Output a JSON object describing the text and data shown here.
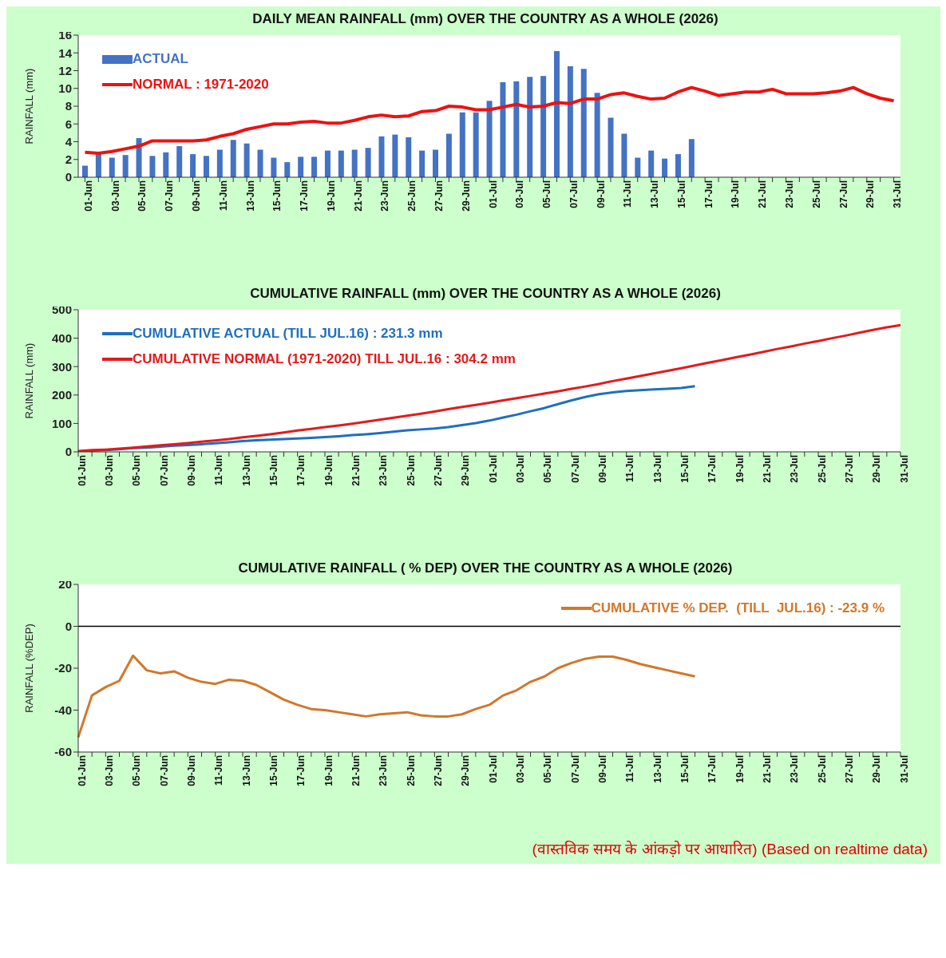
{
  "chart_data": [
    {
      "type": "bar",
      "title": "DAILY MEAN RAINFALL (mm) OVER THE COUNTRY AS A WHOLE  (2026)",
      "ylabel": "RAINFALL  (mm)",
      "categories": [
        "01-Jun",
        null,
        "03-Jun",
        null,
        "05-Jun",
        null,
        "07-Jun",
        null,
        "09-Jun",
        null,
        "11-Jun",
        null,
        "13-Jun",
        null,
        "15-Jun",
        null,
        "17-Jun",
        null,
        "19-Jun",
        null,
        "21-Jun",
        null,
        "23-Jun",
        null,
        "25-Jun",
        null,
        "27-Jun",
        null,
        "29-Jun",
        null,
        "01-Jul",
        null,
        "03-Jul",
        null,
        "05-Jul",
        null,
        "07-Jul",
        null,
        "09-Jul",
        null,
        "11-Jul",
        null,
        "13-Jul",
        null,
        "15-Jul",
        null,
        "17-Jul",
        null,
        "19-Jul",
        null,
        "21-Jul",
        null,
        "23-Jul",
        null,
        "25-Jul",
        null,
        "27-Jul",
        null,
        "29-Jul",
        null,
        "31-Jul"
      ],
      "series": [
        {
          "name": "ACTUAL",
          "color": "#4472c4",
          "values": [
            1.3,
            2.6,
            2.2,
            2.5,
            4.4,
            2.4,
            2.8,
            3.5,
            2.6,
            2.4,
            3.1,
            4.2,
            3.8,
            3.1,
            2.2,
            1.7,
            2.3,
            2.3,
            3.0,
            3.0,
            3.1,
            3.3,
            4.6,
            4.8,
            4.5,
            3.0,
            3.1,
            4.9,
            7.3,
            7.3,
            8.6,
            10.7,
            10.8,
            11.3,
            11.4,
            14.2,
            12.5,
            12.2,
            9.5,
            6.7,
            4.9,
            2.2,
            3.0,
            2.1,
            2.6,
            4.3,
            null,
            null,
            null,
            null,
            null,
            null,
            null,
            null,
            null,
            null,
            null,
            null,
            null,
            null,
            null
          ]
        },
        {
          "name": "NORMAL : 1971-2020",
          "type": "line",
          "color": "#ee1111",
          "values": [
            2.8,
            2.7,
            2.9,
            3.2,
            3.5,
            4.1,
            4.1,
            4.1,
            4.1,
            4.2,
            4.6,
            4.9,
            5.4,
            5.7,
            6.0,
            6.0,
            6.2,
            6.3,
            6.1,
            6.1,
            6.4,
            6.8,
            7.0,
            6.8,
            6.9,
            7.4,
            7.5,
            8.0,
            7.9,
            7.6,
            7.6,
            7.9,
            8.2,
            7.9,
            8.0,
            8.4,
            8.3,
            8.8,
            8.8,
            9.3,
            9.5,
            9.1,
            8.8,
            8.9,
            9.6,
            10.1,
            9.7,
            9.2,
            9.4,
            9.6,
            9.6,
            9.9,
            9.4,
            9.4,
            9.4,
            9.5,
            9.7,
            10.1,
            9.4,
            8.9,
            8.6
          ]
        }
      ],
      "ylim": [
        0,
        16
      ],
      "yticks": [
        0,
        2,
        4,
        6,
        8,
        10,
        12,
        14,
        16
      ],
      "grid": false,
      "legend": "top left",
      "marker": "none"
    },
    {
      "type": "line",
      "title": "CUMULATIVE  RAINFALL (mm) OVER THE COUNTRY AS A WHOLE  (2026)",
      "ylabel": "RAINFALL  (mm)",
      "categories": [
        "01-Jun",
        null,
        "03-Jun",
        null,
        "05-Jun",
        null,
        "07-Jun",
        null,
        "09-Jun",
        null,
        "11-Jun",
        null,
        "13-Jun",
        null,
        "15-Jun",
        null,
        "17-Jun",
        null,
        "19-Jun",
        null,
        "21-Jun",
        null,
        "23-Jun",
        null,
        "25-Jun",
        null,
        "27-Jun",
        null,
        "29-Jun",
        null,
        "01-Jul",
        null,
        "03-Jul",
        null,
        "05-Jul",
        null,
        "07-Jul",
        null,
        "09-Jul",
        null,
        "11-Jul",
        null,
        "13-Jul",
        null,
        "15-Jul",
        null,
        "17-Jul",
        null,
        "19-Jul",
        null,
        "21-Jul",
        null,
        "23-Jul",
        null,
        "25-Jul",
        null,
        "27-Jul",
        null,
        "29-Jul",
        null,
        "31-Jul"
      ],
      "series": [
        {
          "name": "CUMULATIVE ACTUAL (TILL JUL.16) : 231.3 mm",
          "color": "#1f6fc0",
          "values": [
            1,
            4,
            6,
            9,
            13,
            15,
            18,
            22,
            24,
            27,
            30,
            34,
            38,
            41,
            43,
            45,
            47,
            49,
            52,
            55,
            59,
            62,
            66,
            71,
            76,
            79,
            82,
            87,
            94,
            101,
            110,
            121,
            131,
            143,
            154,
            168,
            181,
            193,
            203,
            209,
            214,
            217,
            220,
            222,
            225,
            231,
            null,
            null,
            null,
            null,
            null,
            null,
            null,
            null,
            null,
            null,
            null,
            null,
            null,
            null,
            null
          ]
        },
        {
          "name": "CUMULATIVE NORMAL (1971-2020) TILL JUL.16 : 304.2 mm",
          "color": "#e31a1c",
          "values": [
            3,
            6,
            8,
            11,
            15,
            19,
            23,
            27,
            31,
            36,
            40,
            45,
            51,
            56,
            62,
            68,
            75,
            81,
            87,
            93,
            99,
            106,
            113,
            120,
            127,
            134,
            142,
            150,
            158,
            165,
            173,
            181,
            189,
            197,
            205,
            213,
            222,
            230,
            239,
            249,
            258,
            267,
            276,
            285,
            294,
            304,
            314,
            323,
            333,
            342,
            352,
            362,
            371,
            381,
            390,
            400,
            409,
            419,
            429,
            438,
            446
          ]
        }
      ],
      "ylim": [
        0,
        500
      ],
      "yticks": [
        0,
        100,
        200,
        300,
        400,
        500
      ],
      "grid": false,
      "legend": "top left",
      "marker": "none"
    },
    {
      "type": "line",
      "title": "CUMULATIVE RAINFALL ( % DEP) OVER THE COUNTRY AS A WHOLE (2026)",
      "ylabel": "RAINFALL  (%DEP)",
      "categories": [
        "01-Jun",
        null,
        "03-Jun",
        null,
        "05-Jun",
        null,
        "07-Jun",
        null,
        "09-Jun",
        null,
        "11-Jun",
        null,
        "13-Jun",
        null,
        "15-Jun",
        null,
        "17-Jun",
        null,
        "19-Jun",
        null,
        "21-Jun",
        null,
        "23-Jun",
        null,
        "25-Jun",
        null,
        "27-Jun",
        null,
        "29-Jun",
        null,
        "01-Jul",
        null,
        "03-Jul",
        null,
        "05-Jul",
        null,
        "07-Jul",
        null,
        "09-Jul",
        null,
        "11-Jul",
        null,
        "13-Jul",
        null,
        "15-Jul",
        null,
        "17-Jul",
        null,
        "19-Jul",
        null,
        "21-Jul",
        null,
        "23-Jul",
        null,
        "25-Jul",
        null,
        "27-Jul",
        null,
        "29-Jul",
        null,
        "31-Jul"
      ],
      "series": [
        {
          "name": "CUMULATIVE % DEP.  (TILL  JUL.16) : -23.9 %",
          "color": "#d2772a",
          "values": [
            -53,
            -33,
            -29,
            -26,
            -14,
            -21,
            -22.5,
            -21.5,
            -24.5,
            -26.5,
            -27.5,
            -25.5,
            -26,
            -28,
            -31.5,
            -35,
            -37.5,
            -39.5,
            -40,
            -41,
            -42,
            -43,
            -42,
            -41.5,
            -41,
            -42.5,
            -43,
            -43,
            -42,
            -39.5,
            -37.5,
            -33,
            -30.5,
            -26.5,
            -24,
            -20,
            -17.5,
            -15.5,
            -14.5,
            -14.5,
            -16,
            -18,
            -19.5,
            -21,
            -22.5,
            -23.9,
            null,
            null,
            null,
            null,
            null,
            null,
            null,
            null,
            null,
            null,
            null,
            null,
            null,
            null,
            null
          ]
        }
      ],
      "ylim": [
        -60,
        20
      ],
      "yticks": [
        -60,
        -40,
        -20,
        0,
        20
      ],
      "grid": false,
      "legend": "top right",
      "marker": "none",
      "ref_lines": [
        {
          "axis": "y",
          "value": 0,
          "color": "#000000"
        }
      ],
      "annotations": [
        "(वास्तविक समय के आंकड़ो पर आधारित)  (Based on realtime data)"
      ]
    }
  ]
}
